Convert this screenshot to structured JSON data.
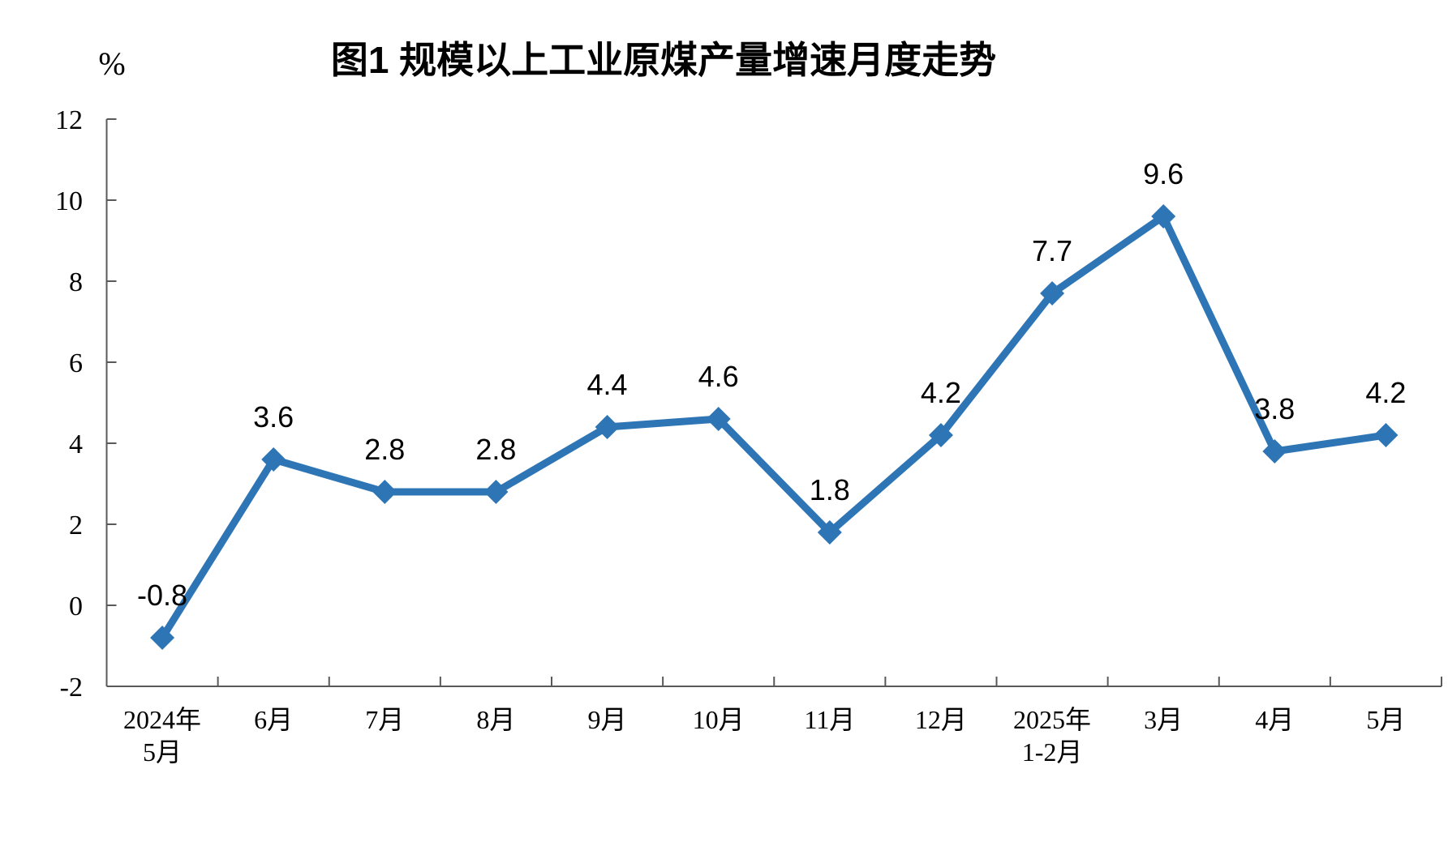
{
  "chart_data": {
    "type": "line",
    "title": "图1 规模以上工业原煤产量增速月度走势",
    "ylabel": "%",
    "xlabel": "",
    "categories": [
      "2024年\n5月",
      "6月",
      "7月",
      "8月",
      "9月",
      "10月",
      "11月",
      "12月",
      "2025年\n1-2月",
      "3月",
      "4月",
      "5月"
    ],
    "values": [
      -0.8,
      3.6,
      2.8,
      2.8,
      4.4,
      4.6,
      1.8,
      4.2,
      7.7,
      9.6,
      3.8,
      4.2
    ],
    "data_labels": [
      "-0.8",
      "3.6",
      "2.8",
      "2.8",
      "4.4",
      "4.6",
      "1.8",
      "4.2",
      "7.7",
      "9.6",
      "3.8",
      "4.2"
    ],
    "ylim": [
      -2,
      12
    ],
    "ytick_step": 2,
    "yticks": [
      12,
      10,
      8,
      6,
      4,
      2,
      0,
      -2
    ],
    "grid": false,
    "legend_position": "none",
    "marker": "diamond",
    "colors": {
      "line": "#2E75B6",
      "marker": "#2E75B6",
      "label_text": "#000000",
      "axis": "#595959"
    }
  }
}
